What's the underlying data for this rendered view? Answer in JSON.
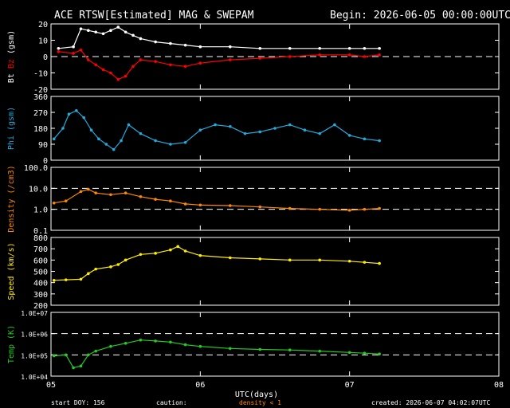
{
  "header": {
    "title": "ACE RTSW[Estimated] MAG & SWEPAM",
    "begin": "Begin: 2026-06-05 00:00:00UTC"
  },
  "footer": {
    "start_doy": "start DOY: 156",
    "caution_label": "caution:",
    "caution_text": "density < 1",
    "created": "created: 2026-06-07 04:02:07UTC"
  },
  "colors": {
    "background": "#000000",
    "frame": "#ffffff",
    "bz": "#ff0000",
    "bt": "#ffffff",
    "phi": "#22aadd",
    "density": "#ff8800",
    "speed": "#ffee00",
    "temp": "#22cc22"
  },
  "chart_data": [
    {
      "type": "scatter",
      "panel": "magnetic-field",
      "ylabel_parts": [
        "Bt",
        "Bz",
        "(gsm)"
      ],
      "ylim": [
        -20,
        20
      ],
      "yticks": [
        "20",
        "10",
        "0",
        "-10",
        "-20"
      ],
      "reference_lines": [
        0
      ],
      "x": [
        0.05,
        0.15,
        0.2,
        0.25,
        0.3,
        0.35,
        0.4,
        0.45,
        0.5,
        0.55,
        0.6,
        0.7,
        0.8,
        0.9,
        1.0,
        1.2,
        1.4,
        1.6,
        1.8,
        2.0,
        2.1,
        2.2
      ],
      "series": [
        {
          "name": "Bt",
          "values": [
            5,
            6,
            17,
            16,
            15,
            14,
            16,
            18,
            15,
            13,
            11,
            9,
            8,
            7,
            6,
            6,
            5,
            5,
            5,
            5,
            5,
            5
          ]
        },
        {
          "name": "Bz",
          "values": [
            3,
            2,
            4,
            -2,
            -5,
            -8,
            -10,
            -14,
            -12,
            -6,
            -2,
            -3,
            -5,
            -6,
            -4,
            -2,
            -1,
            0,
            1,
            1,
            0,
            1
          ]
        }
      ]
    },
    {
      "type": "scatter",
      "panel": "phi",
      "ylabel": "Phi (gsm)",
      "ylim": [
        0,
        360
      ],
      "yticks": [
        "360",
        "270",
        "180",
        "90",
        "0"
      ],
      "x": [
        0.02,
        0.08,
        0.12,
        0.17,
        0.22,
        0.27,
        0.32,
        0.37,
        0.42,
        0.47,
        0.52,
        0.6,
        0.7,
        0.8,
        0.9,
        1.0,
        1.1,
        1.2,
        1.3,
        1.4,
        1.5,
        1.6,
        1.7,
        1.8,
        1.9,
        2.0,
        2.1,
        2.2
      ],
      "values": [
        120,
        180,
        260,
        280,
        240,
        170,
        120,
        90,
        60,
        110,
        200,
        150,
        110,
        90,
        100,
        170,
        200,
        190,
        150,
        160,
        180,
        200,
        170,
        150,
        200,
        140,
        120,
        110
      ]
    },
    {
      "type": "scatter",
      "panel": "density",
      "ylabel": "Density (/cm3)",
      "yscale": "log",
      "ylim": [
        0.1,
        100
      ],
      "yticks": [
        "100.0",
        "10.0",
        "1.0",
        "0.1"
      ],
      "reference_lines": [
        10,
        1
      ],
      "x": [
        0.02,
        0.1,
        0.2,
        0.25,
        0.3,
        0.4,
        0.5,
        0.6,
        0.7,
        0.8,
        0.9,
        1.0,
        1.2,
        1.4,
        1.6,
        1.8,
        2.0,
        2.1,
        2.2
      ],
      "values": [
        2.0,
        2.5,
        7,
        9,
        6,
        5,
        6,
        4,
        3,
        2.5,
        1.8,
        1.6,
        1.5,
        1.3,
        1.1,
        1.0,
        0.9,
        1.0,
        1.1
      ]
    },
    {
      "type": "scatter",
      "panel": "speed",
      "ylabel": "Speed (km/s)",
      "ylim": [
        200,
        800
      ],
      "yticks": [
        "800",
        "700",
        "600",
        "500",
        "400",
        "300",
        "200"
      ],
      "x": [
        0.02,
        0.1,
        0.2,
        0.25,
        0.3,
        0.4,
        0.45,
        0.5,
        0.6,
        0.7,
        0.8,
        0.85,
        0.9,
        1.0,
        1.2,
        1.4,
        1.6,
        1.8,
        2.0,
        2.1,
        2.2
      ],
      "values": [
        420,
        425,
        430,
        480,
        520,
        540,
        560,
        600,
        650,
        660,
        690,
        720,
        680,
        640,
        620,
        610,
        600,
        600,
        590,
        580,
        570
      ]
    },
    {
      "type": "scatter",
      "panel": "temperature",
      "ylabel": "Temp (K)",
      "yscale": "log",
      "ylim": [
        10000,
        10000000
      ],
      "yticks": [
        "1.0E+07",
        "1.0E+06",
        "1.0E+05",
        "1.0E+04"
      ],
      "reference_lines": [
        1000000,
        100000
      ],
      "x": [
        0.02,
        0.1,
        0.15,
        0.2,
        0.25,
        0.3,
        0.4,
        0.5,
        0.6,
        0.7,
        0.8,
        0.9,
        1.0,
        1.2,
        1.4,
        1.6,
        1.8,
        2.0,
        2.1,
        2.2
      ],
      "values": [
        90000,
        100000,
        25000,
        30000,
        100000,
        150000,
        250000,
        350000,
        500000,
        450000,
        400000,
        300000,
        250000,
        200000,
        180000,
        170000,
        150000,
        130000,
        120000,
        110000
      ]
    }
  ],
  "x_axis": {
    "xlim": [
      0,
      3
    ],
    "tick_values": [
      0,
      1,
      2,
      3
    ],
    "tick_labels": [
      "05",
      "06",
      "07",
      "08"
    ],
    "label": "UTC(days)"
  }
}
